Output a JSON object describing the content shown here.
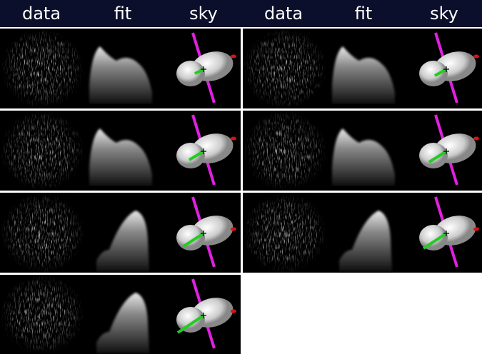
{
  "header": {
    "labels": [
      "data",
      "fit",
      "sky",
      "data",
      "fit",
      "sky"
    ]
  }
}
